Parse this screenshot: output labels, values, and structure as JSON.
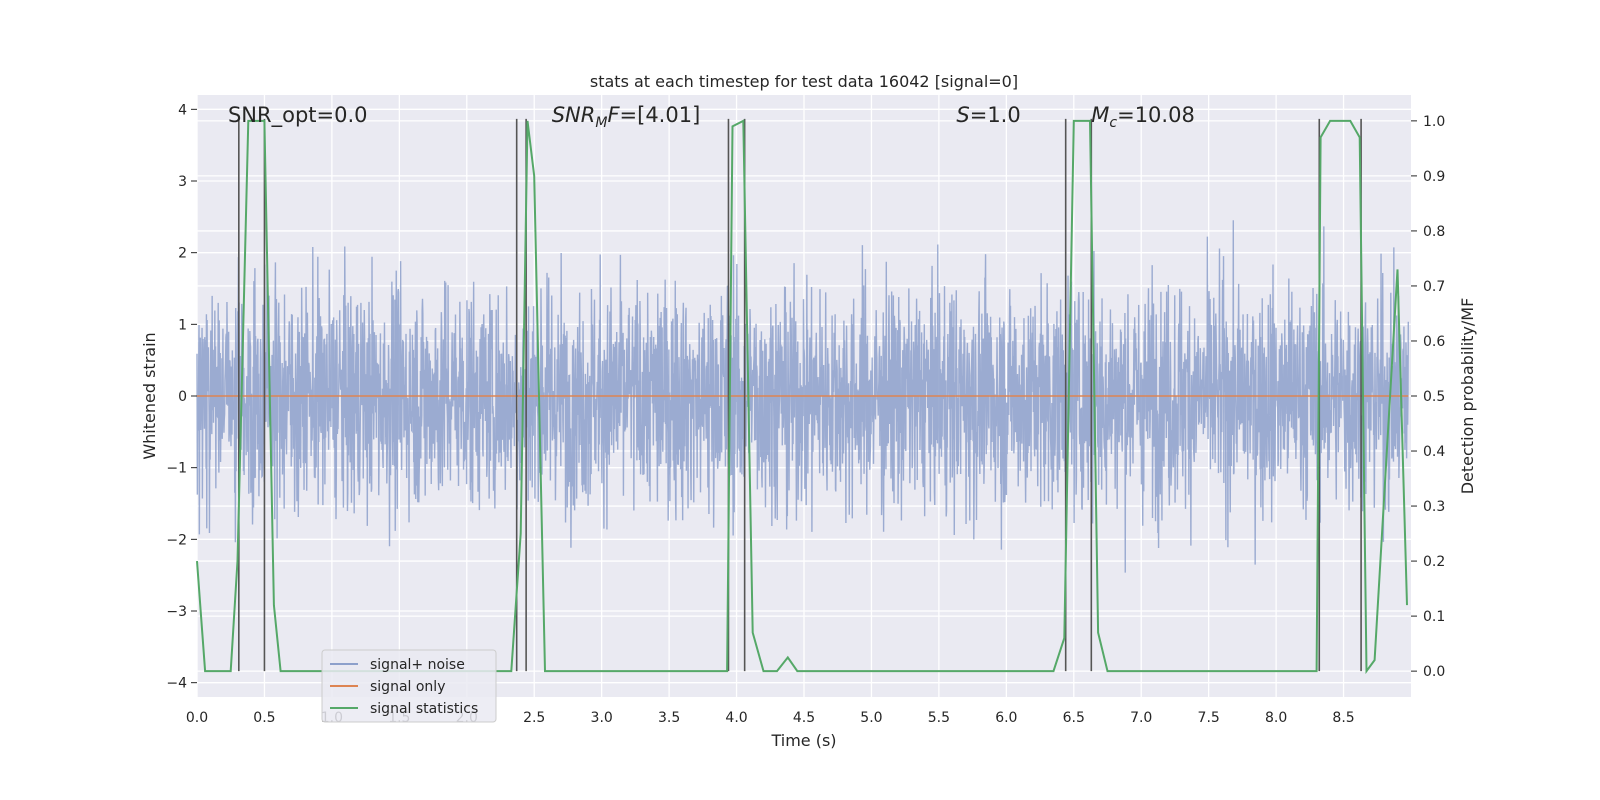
{
  "chart_data": {
    "type": "line",
    "title": "stats at each timestep for test data 16042 [signal=0]",
    "xlabel": "Time (s)",
    "ylabel_left": "Whitened strain",
    "ylabel_right": "Detection probability/MF",
    "xlim": [
      0.0,
      9.0
    ],
    "ylim_left": [
      -4.2,
      4.2
    ],
    "ylim_right": [
      -0.047,
      1.047
    ],
    "x_ticks": [
      "0.0",
      "0.5",
      "1.0",
      "1.5",
      "2.0",
      "2.5",
      "3.0",
      "3.5",
      "4.0",
      "4.5",
      "5.0",
      "5.5",
      "6.0",
      "6.5",
      "7.0",
      "7.5",
      "8.0",
      "8.5"
    ],
    "x_tick_values": [
      0.0,
      0.5,
      1.0,
      1.5,
      2.0,
      2.5,
      3.0,
      3.5,
      4.0,
      4.5,
      5.0,
      5.5,
      6.0,
      6.5,
      7.0,
      7.5,
      8.0,
      8.5
    ],
    "y_left_ticks": [
      "4",
      "3",
      "2",
      "1",
      "0",
      "−1",
      "−2",
      "−3",
      "−4"
    ],
    "y_left_tick_values": [
      4,
      3,
      2,
      1,
      0,
      -1,
      -2,
      -3,
      -4
    ],
    "y_right_ticks": [
      "1.0",
      "0.9",
      "0.8",
      "0.7",
      "0.6",
      "0.5",
      "0.4",
      "0.3",
      "0.2",
      "0.1",
      "0.0"
    ],
    "y_right_tick_values": [
      1.0,
      0.9,
      0.8,
      0.7,
      0.6,
      0.5,
      0.4,
      0.3,
      0.2,
      0.1,
      0.0
    ],
    "annotations": [
      {
        "id": "snr-opt",
        "label": "SNR_opt=0.0",
        "x": 0.2
      },
      {
        "id": "snr-mf",
        "label": "SNR",
        "sub": "M",
        "suffix": "F=[4.01]",
        "x": 2.6
      },
      {
        "id": "s",
        "label": "S",
        "suffix": "=1.0",
        "x": 5.6
      },
      {
        "id": "mc",
        "label": "M",
        "sub": "c",
        "suffix": "=10.08",
        "x": 6.6
      }
    ],
    "series": [
      {
        "name": "signal+ noise",
        "color": "#8da0cb",
        "kind": "noise",
        "std": 0.78,
        "peak": 3.8
      },
      {
        "name": "signal only",
        "color": "#dd8452",
        "kind": "flat",
        "value": 0
      },
      {
        "name": "signal statistics",
        "color": "#55a868",
        "axis": "right",
        "x": [
          0.0,
          0.06,
          0.25,
          0.3,
          0.38,
          0.5,
          0.57,
          0.62,
          1.0,
          2.0,
          2.33,
          2.4,
          2.45,
          2.5,
          2.58,
          2.65,
          3.5,
          3.93,
          3.97,
          4.05,
          4.12,
          4.2,
          4.3,
          4.38,
          4.45,
          5.0,
          5.5,
          6.0,
          6.35,
          6.43,
          6.5,
          6.62,
          6.68,
          6.75,
          7.0,
          8.3,
          8.33,
          8.4,
          8.55,
          8.62,
          8.67,
          8.73,
          8.9,
          8.97
        ],
        "y": [
          0.2,
          0.0,
          0.0,
          0.2,
          1.0,
          1.0,
          0.12,
          0.0,
          0.0,
          0.0,
          0.0,
          0.25,
          1.0,
          0.9,
          0.0,
          0.0,
          0.0,
          0.0,
          0.99,
          1.0,
          0.07,
          0.0,
          0.0,
          0.025,
          0.0,
          0.0,
          0.0,
          0.0,
          0.0,
          0.06,
          1.0,
          1.0,
          0.07,
          0.0,
          0.0,
          0.0,
          0.97,
          1.0,
          1.0,
          0.97,
          0.0,
          0.02,
          0.73,
          0.12
        ]
      }
    ],
    "detection_lines_x": [
      0.31,
      0.5,
      2.37,
      2.44,
      3.94,
      4.06,
      6.44,
      6.63,
      8.32,
      8.63
    ],
    "legend": {
      "position": "lower-left",
      "entries": [
        "signal+ noise",
        "signal only",
        "signal statistics"
      ]
    }
  }
}
